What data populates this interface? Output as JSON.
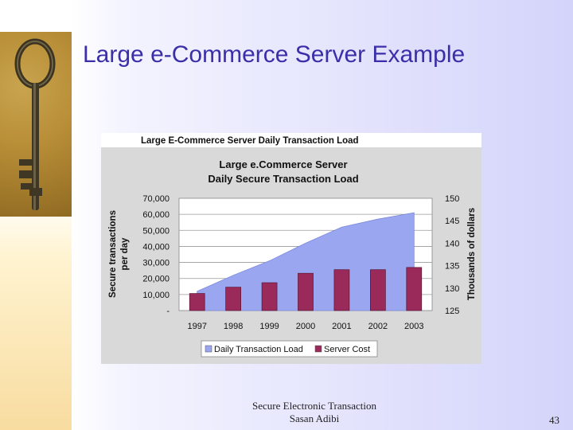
{
  "slide": {
    "title": "Large e-Commerce Server Example",
    "footer_line1": "Secure Electronic Transaction",
    "footer_line2": "Sasan Adibi",
    "page_number": "43"
  },
  "chart_data": {
    "type": "bar",
    "window_title": "Large E-Commerce Server Daily Transaction Load",
    "title": "Large e.Commerce Server",
    "subtitle": "Daily Secure Transaction Load",
    "categories": [
      "1997",
      "1998",
      "1999",
      "2000",
      "2001",
      "2002",
      "2003"
    ],
    "ylabel": "Secure transactions per day",
    "ylabel_line1": "Secure transactions",
    "ylabel_line2": "per day",
    "y2label": "Thousands of dollars",
    "ylim": [
      0,
      70000
    ],
    "y_ticks": [
      "-",
      "10,000",
      "20,000",
      "30,000",
      "40,000",
      "50,000",
      "60,000",
      "70,000"
    ],
    "y2lim": [
      125,
      150
    ],
    "y2_ticks": [
      "125",
      "130",
      "135",
      "140",
      "145",
      "150"
    ],
    "series": [
      {
        "name": "Daily Transaction Load",
        "type": "area",
        "axis": "left",
        "color": "#9aa7f0",
        "values": [
          12000,
          22000,
          31000,
          42000,
          52000,
          57000,
          61000
        ]
      },
      {
        "name": "Server Cost",
        "type": "bar",
        "axis": "right",
        "color": "#992a5a",
        "values": [
          128.8,
          130.2,
          131.2,
          133.3,
          134.1,
          134.1,
          134.6
        ]
      }
    ],
    "legend": "bottom",
    "grid": true
  }
}
